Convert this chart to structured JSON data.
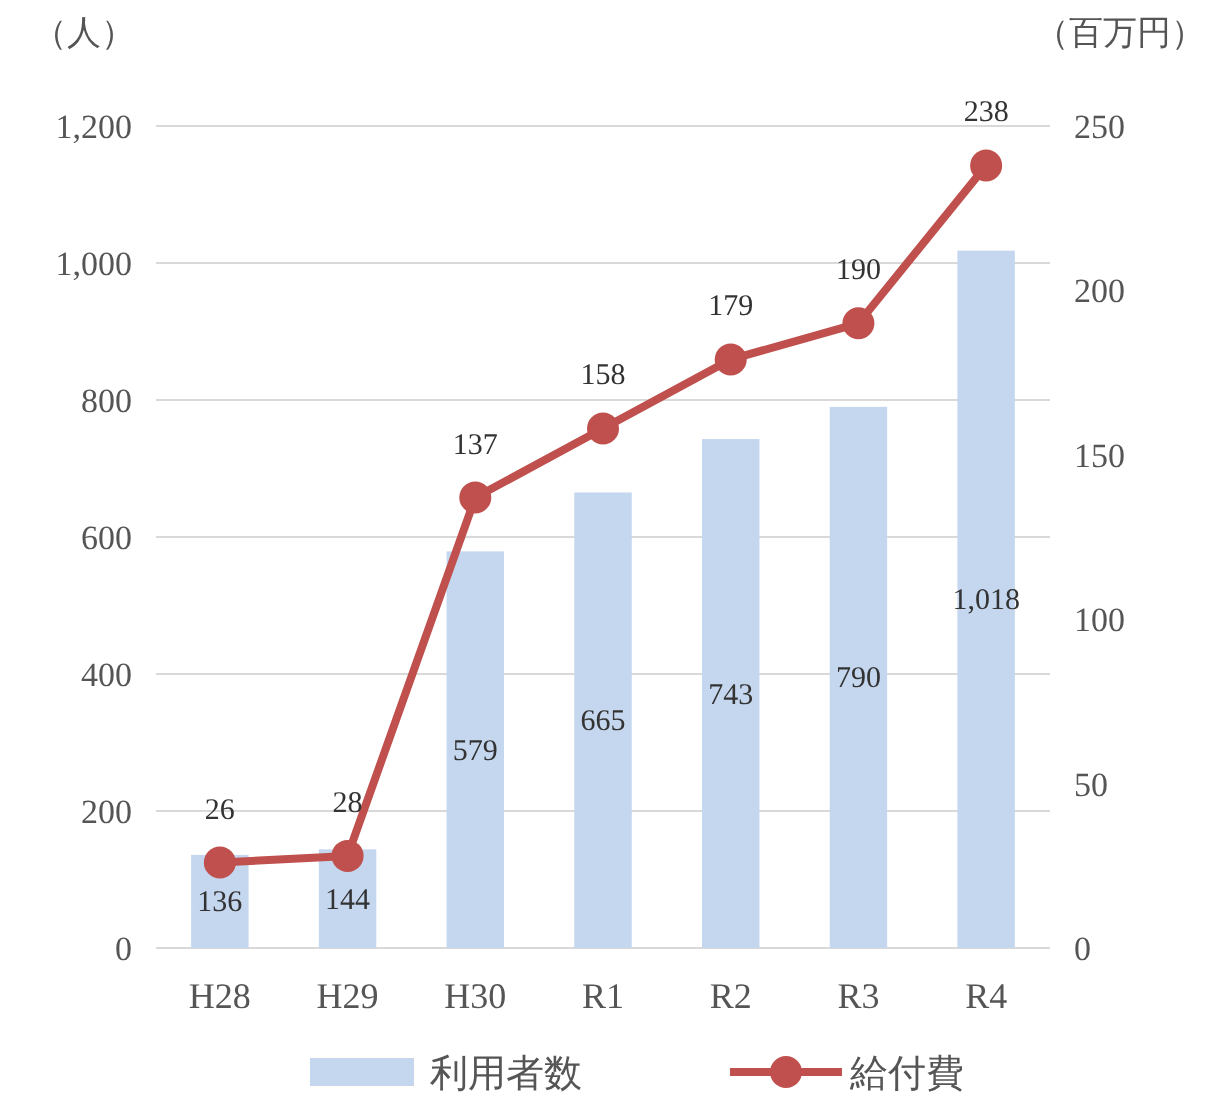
{
  "chart_data": {
    "type": "bar",
    "ylabel": "（人）",
    "y2label": "（百万円）",
    "categories": [
      "H28",
      "H29",
      "H30",
      "R1",
      "R2",
      "R3",
      "R4"
    ],
    "series": [
      {
        "name": "利用者数",
        "color": "#c5d7ef",
        "values": [
          136,
          144,
          579,
          665,
          743,
          790,
          1018
        ],
        "value_labels": [
          "136",
          "144",
          "579",
          "665",
          "743",
          "790",
          "1,018"
        ]
      },
      {
        "name": "給付費",
        "type": "line",
        "axis": "y2",
        "color": "#c0504d",
        "values": [
          26,
          28,
          137,
          158,
          179,
          190,
          238
        ],
        "data_labels": true
      }
    ],
    "ylim": [
      0,
      1200
    ],
    "yticks": [
      0,
      {
        "value": 200,
        "label": "200"
      },
      {
        "value": 400,
        "label": "400"
      },
      {
        "value": 600,
        "label": "600"
      },
      {
        "value": 800,
        "label": "800"
      },
      {
        "value": 1000,
        "label": "1,000"
      },
      {
        "value": 1200,
        "label": "1,200"
      }
    ],
    "y2lim": [
      0,
      250
    ],
    "y2ticks": [
      0,
      50,
      100,
      150,
      200,
      250
    ],
    "grid": "y",
    "legend": "bottom",
    "marker": "circle"
  }
}
